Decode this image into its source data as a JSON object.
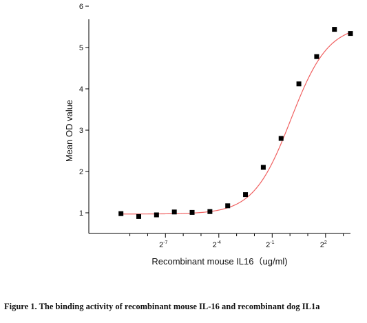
{
  "caption": "Figure 1. The binding activity of recombinant mouse IL-16 and recombinant dog IL1a",
  "chart_data": {
    "type": "scatter",
    "xlabel": "Recombinant mouse  IL16（ug/ml)",
    "ylabel": "Mean OD value",
    "x_scale": "log2",
    "xlim": [
      -10.3,
      3.4
    ],
    "ylim": [
      0.5,
      6
    ],
    "y_ticks": [
      1,
      2,
      3,
      4,
      5,
      6
    ],
    "y_tick_labels": [
      "1",
      "2",
      "3",
      "4",
      "5",
      "6"
    ],
    "x_major_ticks": [
      -7,
      -4,
      -1,
      2
    ],
    "x_tick_labels": [
      {
        "base": "2",
        "exp": "-7"
      },
      {
        "base": "2",
        "exp": "-4"
      },
      {
        "base": "2",
        "exp": "-1"
      },
      {
        "base": "2",
        "exp": "2"
      }
    ],
    "x_minor_ticks": [
      -9,
      -8,
      -6,
      -5,
      -3,
      -2,
      0,
      1,
      3
    ],
    "grid": false,
    "series": [
      {
        "marker": "square",
        "color": "#000000",
        "x": [
          -9.5,
          -8.5,
          -7.5,
          -6.5,
          -5.5,
          -4.5,
          -3.5,
          -2.5,
          -1.5,
          -0.5,
          0.5,
          1.5,
          2.5,
          3.4
        ],
        "y": [
          0.98,
          0.91,
          0.95,
          1.02,
          1.01,
          1.03,
          1.17,
          1.44,
          2.1,
          2.8,
          4.12,
          4.78,
          5.44,
          5.34
        ]
      }
    ],
    "fit_curve": {
      "color": "#f06060",
      "bottom": 0.97,
      "top": 5.55,
      "midpoint_log2": 0.05,
      "slope": 0.95,
      "x_range": [
        -9.5,
        3.4
      ]
    }
  }
}
